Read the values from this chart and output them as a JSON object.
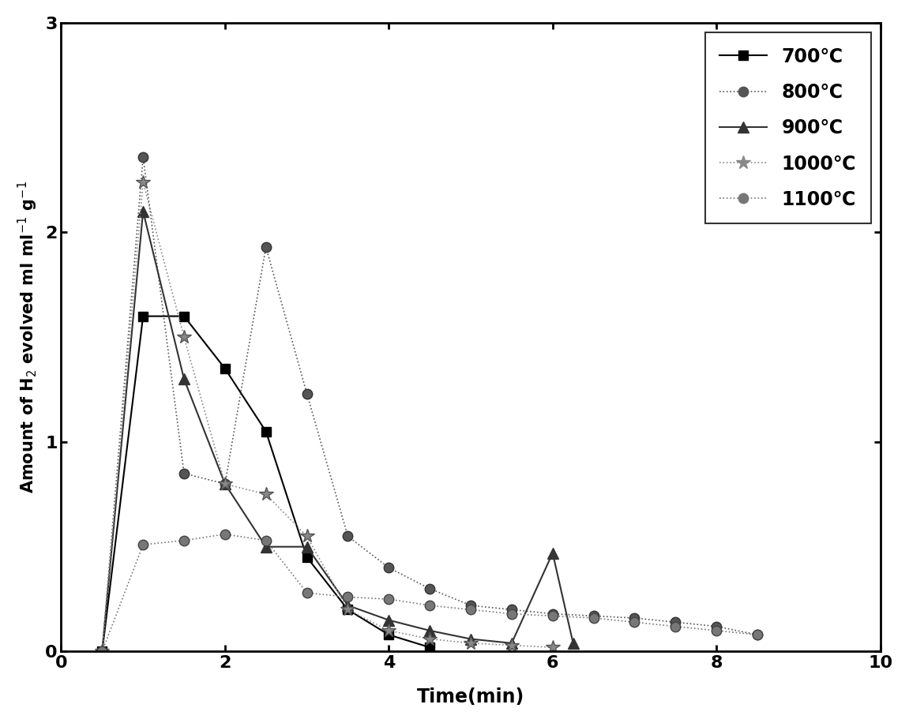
{
  "series_700": {
    "x": [
      0.5,
      1.0,
      1.5,
      2.0,
      2.5,
      3.0,
      3.5,
      4.0,
      4.5
    ],
    "y": [
      0.0,
      1.6,
      1.6,
      1.35,
      1.05,
      0.45,
      0.2,
      0.08,
      0.02
    ],
    "color": "#000000",
    "marker": "s",
    "linestyle": "-",
    "markersize": 9,
    "label": "700"
  },
  "series_800": {
    "x": [
      0.5,
      1.0,
      1.5,
      2.0,
      2.5,
      3.0,
      3.5,
      4.0,
      4.5,
      5.0,
      5.5,
      6.0,
      6.5,
      7.0,
      7.5,
      8.0,
      8.5
    ],
    "y": [
      0.0,
      2.36,
      0.85,
      0.8,
      1.93,
      1.23,
      0.55,
      0.4,
      0.3,
      0.22,
      0.2,
      0.18,
      0.17,
      0.16,
      0.14,
      0.12,
      0.08
    ],
    "color": "#555555",
    "marker": "o",
    "linestyle": "-",
    "markersize": 9,
    "label": "800"
  },
  "series_900": {
    "x": [
      0.5,
      1.0,
      1.5,
      2.0,
      2.5,
      3.0,
      3.5,
      4.0,
      4.5,
      5.0,
      5.5,
      6.0,
      6.25
    ],
    "y": [
      0.0,
      2.1,
      1.3,
      0.8,
      0.5,
      0.5,
      0.22,
      0.15,
      0.1,
      0.06,
      0.04,
      0.47,
      0.04
    ],
    "color": "#333333",
    "marker": "^",
    "linestyle": "-",
    "markersize": 10,
    "label": "900"
  },
  "series_1000": {
    "x": [
      0.5,
      1.0,
      1.5,
      2.0,
      2.5,
      3.0,
      3.5,
      4.0,
      4.5,
      5.0,
      5.5,
      6.0
    ],
    "y": [
      0.0,
      2.24,
      1.5,
      0.8,
      0.75,
      0.55,
      0.2,
      0.1,
      0.06,
      0.04,
      0.03,
      0.02
    ],
    "color": "#888888",
    "marker": "*",
    "linestyle": "-",
    "markersize": 13,
    "label": "1000"
  },
  "series_1100": {
    "x": [
      0.5,
      1.0,
      1.5,
      2.0,
      2.5,
      3.0,
      3.5,
      4.0,
      4.5,
      5.0,
      5.5,
      6.0,
      6.5,
      7.0,
      7.5,
      8.0,
      8.5
    ],
    "y": [
      0.0,
      0.51,
      0.53,
      0.56,
      0.53,
      0.28,
      0.26,
      0.25,
      0.22,
      0.2,
      0.18,
      0.17,
      0.16,
      0.14,
      0.12,
      0.1,
      0.08
    ],
    "color": "#777777",
    "marker": "o",
    "linestyle": "-",
    "markersize": 9,
    "label": "1100"
  },
  "xlabel": "Time(min)",
  "ylabel": "Amount of H$_2$ evolved ml ml$^{-1}$ g$^{-1}$",
  "xlim": [
    0,
    10
  ],
  "ylim": [
    0,
    3
  ],
  "xticks": [
    0,
    2,
    4,
    6,
    8,
    10
  ],
  "yticks": [
    0,
    1,
    2,
    3
  ],
  "background_color": "#ffffff",
  "axis_fontsize": 17,
  "tick_fontsize": 16
}
